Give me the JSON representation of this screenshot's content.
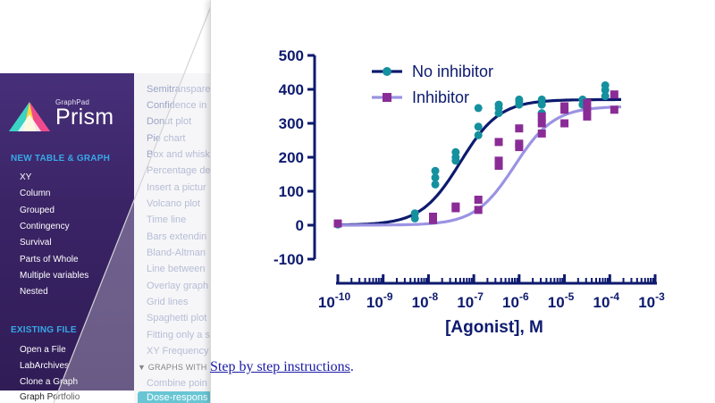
{
  "brand": {
    "small": "GraphPad",
    "big": "Prism"
  },
  "sidebar": {
    "new_header": "NEW TABLE & GRAPH",
    "new_items": [
      "XY",
      "Column",
      "Grouped",
      "Contingency",
      "Survival",
      "Parts of Whole",
      "Multiple variables",
      "Nested"
    ],
    "existing_header": "EXISTING FILE",
    "existing_items": [
      "Open a File",
      "LabArchives",
      "Clone a Graph",
      "Graph Portfolio"
    ]
  },
  "gallery": {
    "items": [
      "Semitransparent",
      "Confidence in",
      "Donut plot",
      "Pie chart",
      "Box and whisk",
      "Percentage de",
      "Insert a pictur",
      "Volcano plot",
      "Time line",
      "Bars extendin",
      "Bland-Altman",
      "Line between",
      "Overlay graph",
      "Grid lines",
      "Spaghetti plot",
      "Fitting only a s",
      "XY Frequency"
    ],
    "group_header": "▼ GRAPHS WITH",
    "group_items": [
      "Combine poin",
      "Dose-respons"
    ]
  },
  "link": {
    "text": "Step by step instructions",
    "suffix": "."
  },
  "chart_data": {
    "type": "scatter",
    "title": "",
    "xlabel": "[Agonist], M",
    "ylabel": "",
    "xscale": "log10",
    "xlim": [
      -10,
      -3
    ],
    "ylim": [
      -100,
      500
    ],
    "yticks": [
      "-100",
      "0",
      "100",
      "200",
      "300",
      "400",
      "500"
    ],
    "xticks": [
      {
        "base": "10",
        "exp": "-10"
      },
      {
        "base": "10",
        "exp": "-9"
      },
      {
        "base": "10",
        "exp": "-8"
      },
      {
        "base": "10",
        "exp": "-7"
      },
      {
        "base": "10",
        "exp": "-6"
      },
      {
        "base": "10",
        "exp": "-5"
      },
      {
        "base": "10",
        "exp": "-4"
      },
      {
        "base": "10",
        "exp": "-3"
      }
    ],
    "legend_position": "top-left",
    "series": [
      {
        "name": "No inhibitor",
        "color": "#0d1a6e",
        "marker_color": "#14909f",
        "marker": "circle",
        "fit": {
          "bottom": 0,
          "top": 370,
          "logEC50": -7.3,
          "hill": 1.0
        },
        "points": [
          [
            -10,
            2
          ],
          [
            -8.3,
            20
          ],
          [
            -8.3,
            35
          ],
          [
            -7.85,
            120
          ],
          [
            -7.85,
            140
          ],
          [
            -7.85,
            160
          ],
          [
            -7.4,
            190
          ],
          [
            -7.4,
            200
          ],
          [
            -7.4,
            215
          ],
          [
            -6.9,
            265
          ],
          [
            -6.9,
            290
          ],
          [
            -6.9,
            345
          ],
          [
            -6.45,
            330
          ],
          [
            -6.45,
            345
          ],
          [
            -6.45,
            355
          ],
          [
            -6.0,
            355
          ],
          [
            -6.0,
            365
          ],
          [
            -6.0,
            370
          ],
          [
            -5.5,
            330
          ],
          [
            -5.5,
            355
          ],
          [
            -5.5,
            370
          ],
          [
            -4.6,
            355
          ],
          [
            -4.6,
            370
          ],
          [
            -4.1,
            380
          ],
          [
            -4.1,
            398
          ],
          [
            -4.1,
            412
          ]
        ]
      },
      {
        "name": "Inhibitor",
        "color": "#9b93e2",
        "marker_color": "#8a2c96",
        "marker": "square",
        "fit": {
          "bottom": 0,
          "top": 350,
          "logEC50": -6.1,
          "hill": 1.0
        },
        "points": [
          [
            -10,
            5
          ],
          [
            -7.9,
            15
          ],
          [
            -7.9,
            25
          ],
          [
            -7.4,
            50
          ],
          [
            -7.4,
            55
          ],
          [
            -6.9,
            45
          ],
          [
            -6.9,
            75
          ],
          [
            -6.45,
            175
          ],
          [
            -6.45,
            190
          ],
          [
            -6.45,
            245
          ],
          [
            -6.0,
            230
          ],
          [
            -6.0,
            240
          ],
          [
            -6.0,
            285
          ],
          [
            -5.5,
            270
          ],
          [
            -5.5,
            300
          ],
          [
            -5.5,
            320
          ],
          [
            -5.0,
            300
          ],
          [
            -5.0,
            340
          ],
          [
            -5.0,
            350
          ],
          [
            -4.5,
            320
          ],
          [
            -4.5,
            340
          ],
          [
            -4.5,
            360
          ],
          [
            -3.9,
            340
          ],
          [
            -3.9,
            385
          ]
        ]
      }
    ]
  }
}
